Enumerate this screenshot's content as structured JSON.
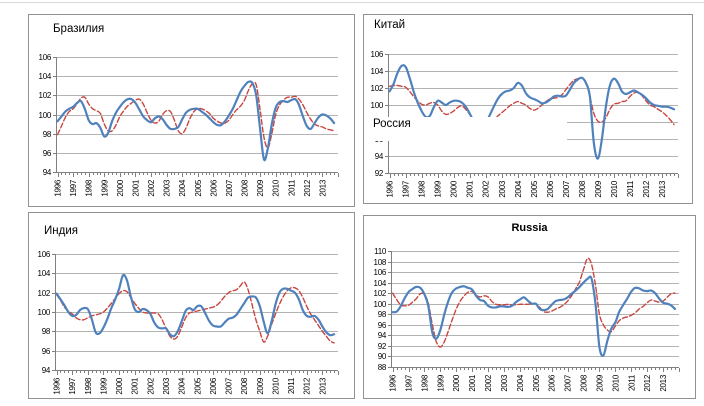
{
  "page": {
    "background": "#ffffff",
    "top_rule_color": "#d8d8d8"
  },
  "colors": {
    "solid_line": "#4F81BD",
    "dashed_line": "#C8463F",
    "gridline": "#b3b3b3",
    "axis": "#808080",
    "panel_border": "#929292",
    "label": "#000000"
  },
  "chart_data": [
    {
      "id": "brazil",
      "type": "line",
      "title": "Бразилия",
      "title_position": "top-left",
      "title_bold": false,
      "legend": false,
      "grid": true,
      "ylim": [
        94,
        106
      ],
      "ytick_step": 2,
      "ytick_labels": [
        "94",
        "96",
        "98",
        "100",
        "102",
        "104",
        "106"
      ],
      "x_start_year": 1996,
      "x_end_year": 2013,
      "points_per_year": 4,
      "xtick_labels": [
        "1996",
        "1997",
        "1998",
        "1999",
        "2000",
        "2001",
        "2002",
        "2003",
        "2004",
        "2005",
        "2006",
        "2007",
        "2008",
        "2009",
        "2010",
        "2011",
        "2012",
        "2013"
      ],
      "series": [
        {
          "name": "solid-blue-line",
          "style": "solid",
          "color_key": "solid_line",
          "values": [
            99.3,
            99.8,
            100.3,
            100.6,
            100.8,
            101.2,
            101.4,
            100.6,
            99.4,
            99.0,
            99.1,
            98.6,
            97.7,
            98.1,
            99.3,
            100.2,
            100.8,
            101.3,
            101.6,
            101.6,
            101.2,
            100.5,
            99.8,
            99.4,
            99.2,
            99.6,
            99.8,
            99.5,
            98.9,
            98.5,
            98.5,
            98.7,
            99.5,
            100.2,
            100.5,
            100.6,
            100.6,
            100.3,
            100.0,
            99.6,
            99.2,
            98.9,
            98.9,
            99.3,
            99.9,
            100.6,
            101.5,
            102.4,
            103.0,
            103.4,
            103.3,
            102.0,
            98.5,
            95.3,
            96.5,
            99.0,
            100.7,
            101.3,
            101.4,
            101.3,
            101.5,
            101.6,
            101.0,
            99.8,
            98.8,
            98.5,
            99.1,
            99.7,
            100.0,
            99.9,
            99.6,
            99.1
          ]
        },
        {
          "name": "dashed-red-line",
          "style": "dashed",
          "color_key": "dashed_line",
          "values": [
            97.9,
            98.8,
            99.7,
            100.3,
            100.6,
            101.1,
            101.7,
            101.8,
            101.1,
            100.6,
            100.4,
            100.1,
            99.0,
            98.3,
            98.3,
            98.9,
            99.8,
            100.4,
            100.9,
            101.2,
            101.5,
            101.6,
            101.1,
            100.2,
            99.4,
            99.1,
            99.3,
            100.0,
            100.4,
            100.3,
            99.4,
            98.3,
            98.0,
            98.6,
            99.6,
            100.3,
            100.6,
            100.6,
            100.4,
            100.1,
            99.6,
            99.3,
            99.1,
            99.1,
            99.4,
            100.0,
            100.5,
            100.9,
            101.5,
            102.5,
            103.2,
            103.1,
            100.5,
            97.6,
            96.5,
            98.0,
            100.0,
            101.0,
            101.5,
            101.8,
            101.8,
            101.9,
            101.6,
            101.0,
            100.2,
            99.5,
            99.0,
            98.8,
            98.7,
            98.5,
            98.4,
            98.3
          ]
        }
      ]
    },
    {
      "id": "china",
      "type": "line",
      "title": "Китай",
      "title_position": "top-left",
      "title_bold": false,
      "legend": false,
      "grid": true,
      "ylim": [
        92,
        106
      ],
      "ytick_step": 2,
      "ytick_labels": [
        "92",
        "94",
        "96",
        "98",
        "100",
        "102",
        "104",
        "106"
      ],
      "x_start_year": 1996,
      "x_end_year": 2013,
      "points_per_year": 4,
      "xtick_labels": [
        "1996",
        "1997",
        "1998",
        "1999",
        "2000",
        "2001",
        "2002",
        "2003",
        "2004",
        "2005",
        "2006",
        "2007",
        "2008",
        "2009",
        "2010",
        "2011",
        "2012",
        "2013"
      ],
      "overlay_label": {
        "text": "Россия",
        "x_right_year": 2007.1,
        "value_top": 98.55,
        "value_bottom": 95.8
      },
      "series": [
        {
          "name": "solid-blue-line",
          "style": "solid",
          "color_key": "solid_line",
          "values": [
            101.6,
            102.5,
            103.8,
            104.6,
            104.5,
            103.2,
            101.6,
            100.3,
            99.3,
            98.6,
            98.7,
            99.7,
            100.5,
            100.3,
            100.0,
            100.3,
            100.5,
            100.5,
            100.3,
            99.8,
            99.0,
            98.1,
            97.4,
            97.2,
            97.8,
            98.8,
            99.8,
            100.7,
            101.3,
            101.6,
            101.7,
            102.0,
            102.6,
            102.3,
            101.4,
            100.9,
            100.7,
            100.5,
            100.2,
            100.3,
            100.6,
            101.0,
            101.1,
            101.0,
            101.1,
            101.8,
            102.6,
            103.0,
            103.2,
            102.6,
            101.0,
            95.5,
            93.7,
            96.0,
            99.8,
            102.3,
            103.1,
            102.6,
            101.6,
            101.3,
            101.5,
            101.7,
            101.5,
            101.2,
            100.8,
            100.3,
            100.0,
            99.9,
            99.8,
            99.8,
            99.7,
            99.5
          ]
        },
        {
          "name": "dashed-red-line",
          "style": "dashed",
          "color_key": "dashed_line",
          "values": [
            102.2,
            102.3,
            102.3,
            102.2,
            102.1,
            101.6,
            101.0,
            100.5,
            100.1,
            100.0,
            100.2,
            100.3,
            100.0,
            99.3,
            98.9,
            99.0,
            99.3,
            99.7,
            99.9,
            99.5,
            98.9,
            98.3,
            97.8,
            97.5,
            97.5,
            97.8,
            98.2,
            98.7,
            99.1,
            99.5,
            99.9,
            100.2,
            100.4,
            100.2,
            100.0,
            99.6,
            99.4,
            99.6,
            100.0,
            100.4,
            100.7,
            100.8,
            100.9,
            101.2,
            101.8,
            102.4,
            102.9,
            103.1,
            103.2,
            102.7,
            101.0,
            99.0,
            98.1,
            98.0,
            98.5,
            99.5,
            100.1,
            100.2,
            100.4,
            100.5,
            101.0,
            101.4,
            101.5,
            101.1,
            100.5,
            100.0,
            99.8,
            99.5,
            99.2,
            98.8,
            98.3,
            97.7
          ]
        }
      ]
    },
    {
      "id": "india",
      "type": "line",
      "title": "Индия",
      "title_position": "top-left",
      "title_bold": false,
      "legend": false,
      "grid": true,
      "ylim": [
        94,
        106
      ],
      "ytick_step": 2,
      "ytick_labels": [
        "94",
        "96",
        "98",
        "100",
        "102",
        "104",
        "106"
      ],
      "x_start_year": 1996,
      "x_end_year": 2013,
      "points_per_year": 4,
      "xtick_labels": [
        "1996",
        "1997",
        "1998",
        "1999",
        "2000",
        "2001",
        "2002",
        "2003",
        "2004",
        "2005",
        "2006",
        "2007",
        "2008",
        "2009",
        "2010",
        "2011",
        "2012",
        "2013"
      ],
      "series": [
        {
          "name": "solid-blue-line",
          "style": "solid",
          "color_key": "solid_line",
          "values": [
            101.9,
            101.3,
            100.7,
            100.0,
            99.6,
            99.7,
            100.2,
            100.4,
            100.3,
            99.3,
            97.9,
            97.8,
            98.4,
            99.3,
            100.4,
            101.3,
            102.4,
            103.8,
            103.3,
            101.6,
            100.3,
            100.0,
            100.3,
            100.2,
            99.8,
            98.9,
            98.4,
            98.3,
            98.3,
            97.7,
            97.5,
            98.0,
            99.0,
            100.1,
            100.4,
            100.2,
            100.6,
            100.6,
            99.9,
            99.1,
            98.6,
            98.5,
            98.5,
            98.9,
            99.3,
            99.4,
            99.7,
            100.3,
            100.9,
            101.5,
            101.6,
            101.5,
            100.6,
            99.0,
            97.8,
            99.0,
            100.8,
            102.0,
            102.4,
            102.4,
            102.2,
            102.0,
            101.3,
            100.2,
            99.6,
            99.5,
            99.6,
            99.2,
            98.5,
            97.9,
            97.6,
            97.7
          ]
        },
        {
          "name": "dashed-red-line",
          "style": "dashed",
          "color_key": "dashed_line",
          "values": [
            101.8,
            101.2,
            100.5,
            100.1,
            99.8,
            99.4,
            99.2,
            99.2,
            99.4,
            99.6,
            99.7,
            99.8,
            100.0,
            100.4,
            100.9,
            101.4,
            101.9,
            102.2,
            102.1,
            101.5,
            100.9,
            100.4,
            100.0,
            99.9,
            99.9,
            99.9,
            99.8,
            99.2,
            98.3,
            97.5,
            97.2,
            97.5,
            98.4,
            99.4,
            99.9,
            100.0,
            100.1,
            100.2,
            100.3,
            100.4,
            100.5,
            100.7,
            101.1,
            101.6,
            102.0,
            102.2,
            102.3,
            102.7,
            103.1,
            102.3,
            100.8,
            99.2,
            98.0,
            96.9,
            97.5,
            98.7,
            99.8,
            100.8,
            101.6,
            102.2,
            102.5,
            102.5,
            102.2,
            101.5,
            100.6,
            99.8,
            99.2,
            98.6,
            98.0,
            97.5,
            97.0,
            96.8
          ]
        }
      ]
    },
    {
      "id": "russia",
      "type": "line",
      "title": "Russia",
      "title_position": "top-center",
      "title_bold": true,
      "legend": false,
      "grid": true,
      "ylim": [
        88,
        110
      ],
      "ytick_step": 2,
      "ytick_labels": [
        "88",
        "90",
        "92",
        "94",
        "96",
        "98",
        "100",
        "102",
        "104",
        "106",
        "108",
        "110"
      ],
      "x_start_year": 1996,
      "x_end_year": 2013,
      "points_per_year": 4,
      "xtick_labels": [
        "1996",
        "1997",
        "1998",
        "1999",
        "2000",
        "2001",
        "2002",
        "2003",
        "2004",
        "2005",
        "2006",
        "2007",
        "2008",
        "2009",
        "2010",
        "2011",
        "2012",
        "2013"
      ],
      "series": [
        {
          "name": "solid-blue-line",
          "style": "solid",
          "color_key": "solid_line",
          "values": [
            98.4,
            98.5,
            99.5,
            101.0,
            102.2,
            102.8,
            103.2,
            103.0,
            101.8,
            99.5,
            94.5,
            93.4,
            95.0,
            98.0,
            100.5,
            102.2,
            102.9,
            103.2,
            103.3,
            103.0,
            102.7,
            101.5,
            100.7,
            100.5,
            99.6,
            99.3,
            99.3,
            99.5,
            99.5,
            99.4,
            99.6,
            100.3,
            100.8,
            101.2,
            100.6,
            100.0,
            100.0,
            99.0,
            98.8,
            99.0,
            99.8,
            100.5,
            100.7,
            100.8,
            101.2,
            101.9,
            102.5,
            103.2,
            104.0,
            104.7,
            104.8,
            100.0,
            91.8,
            90.2,
            93.0,
            95.3,
            96.5,
            98.5,
            99.8,
            101.0,
            102.3,
            103.0,
            102.9,
            102.5,
            102.4,
            102.5,
            102.0,
            101.0,
            100.2,
            100.0,
            99.7,
            99.0
          ]
        },
        {
          "name": "dashed-red-line",
          "style": "dashed",
          "color_key": "dashed_line",
          "values": [
            102.0,
            100.8,
            99.8,
            99.6,
            99.7,
            100.3,
            101.0,
            101.9,
            101.8,
            100.0,
            96.0,
            92.8,
            91.8,
            92.8,
            94.8,
            97.0,
            99.0,
            100.5,
            101.5,
            102.2,
            102.3,
            101.6,
            101.3,
            101.5,
            101.3,
            100.4,
            99.9,
            99.8,
            99.8,
            99.9,
            99.8,
            99.8,
            99.9,
            99.9,
            99.9,
            100.0,
            100.0,
            99.3,
            98.5,
            98.4,
            98.6,
            99.0,
            99.3,
            99.8,
            100.5,
            101.5,
            102.8,
            104.2,
            106.5,
            108.6,
            107.5,
            103.5,
            98.0,
            96.0,
            95.0,
            94.7,
            95.8,
            96.8,
            97.3,
            97.5,
            97.8,
            98.3,
            99.0,
            99.5,
            100.2,
            100.7,
            100.5,
            100.3,
            100.5,
            101.2,
            101.9,
            102.0
          ]
        }
      ]
    }
  ]
}
